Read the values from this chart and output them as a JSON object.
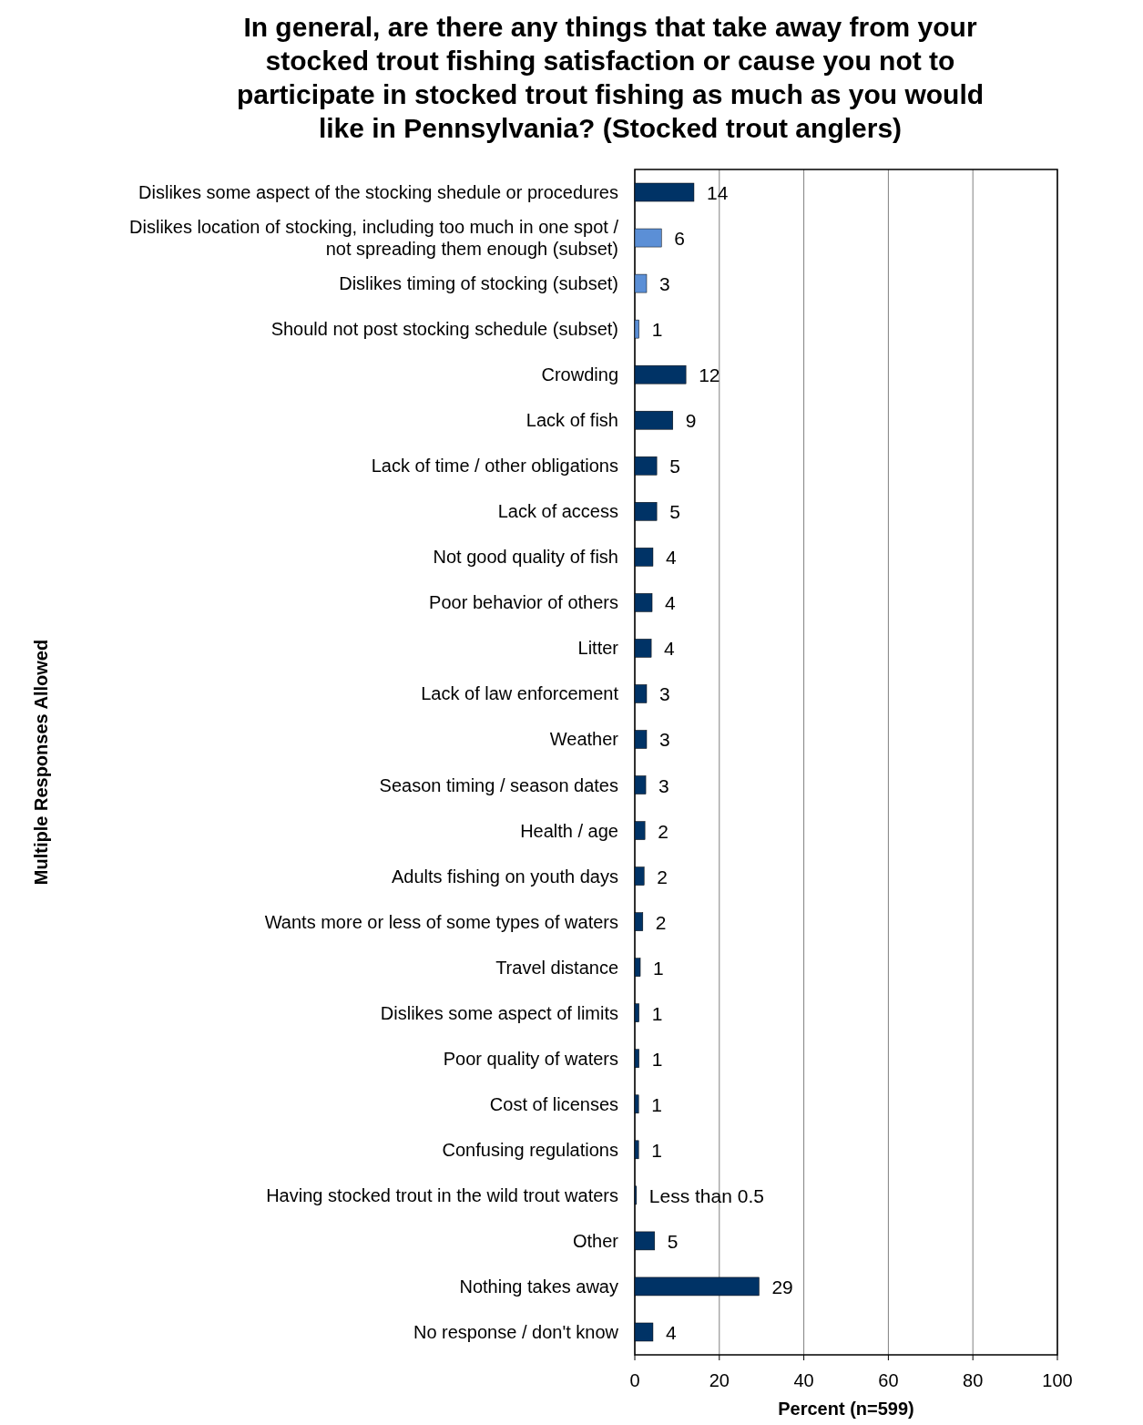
{
  "chart_data": {
    "type": "bar",
    "orientation": "horizontal",
    "title": "In general, are there any things that take away from your stocked trout fishing satisfaction or cause you not to participate in stocked trout fishing as much as you would like in Pennsylvania? (Stocked trout anglers)",
    "xlabel": "Percent (n=599)",
    "ylabel": "Multiple Responses Allowed",
    "categories": [
      "Dislikes some aspect of the stocking shedule or procedures",
      "Dislikes location of stocking, including too much in one spot / not spreading them enough (subset)",
      "Dislikes timing of stocking (subset)",
      "Should not post stocking schedule (subset)",
      "Crowding",
      "Lack of fish",
      "Lack of time / other obligations",
      "Lack of access",
      "Not good quality of fish",
      "Poor behavior of others",
      "Litter",
      "Lack of law enforcement",
      "Weather",
      "Season timing / season dates",
      "Health / age",
      "Adults fishing on youth days",
      "Wants more or less of some types of waters",
      "Travel distance",
      "Dislikes some aspect of limits",
      "Poor quality of waters",
      "Cost of licenses",
      "Confusing regulations",
      "Having stocked trout in the wild trout waters",
      "Other",
      "Nothing takes away",
      "No response / don't know"
    ],
    "values": [
      14.0,
      6.3,
      2.8,
      1.0,
      12.1,
      9.0,
      5.2,
      5.2,
      4.3,
      4.1,
      3.9,
      2.8,
      2.8,
      2.6,
      2.4,
      2.2,
      1.9,
      1.3,
      1.0,
      1.0,
      0.9,
      0.9,
      0.4,
      4.7,
      29.4,
      4.3
    ],
    "value_labels": [
      "14",
      "6",
      "3",
      "1",
      "12",
      "9",
      "5",
      "5",
      "4",
      "4",
      "4",
      "3",
      "3",
      "3",
      "2",
      "2",
      "2",
      "1",
      "1",
      "1",
      "1",
      "1",
      "Less than 0.5",
      "5",
      "29",
      "4"
    ],
    "colors": [
      "#003366",
      "#5b8fd6",
      "#5b8fd6",
      "#5b8fd6",
      "#003366",
      "#003366",
      "#003366",
      "#003366",
      "#003366",
      "#003366",
      "#003366",
      "#003366",
      "#003366",
      "#003366",
      "#003366",
      "#003366",
      "#003366",
      "#003366",
      "#003366",
      "#003366",
      "#003366",
      "#003366",
      "#003366",
      "#003366",
      "#003366",
      "#003366"
    ],
    "xlim": [
      0,
      100
    ],
    "xticks": [
      0,
      20,
      40,
      60,
      80,
      100
    ],
    "grid": "x"
  }
}
